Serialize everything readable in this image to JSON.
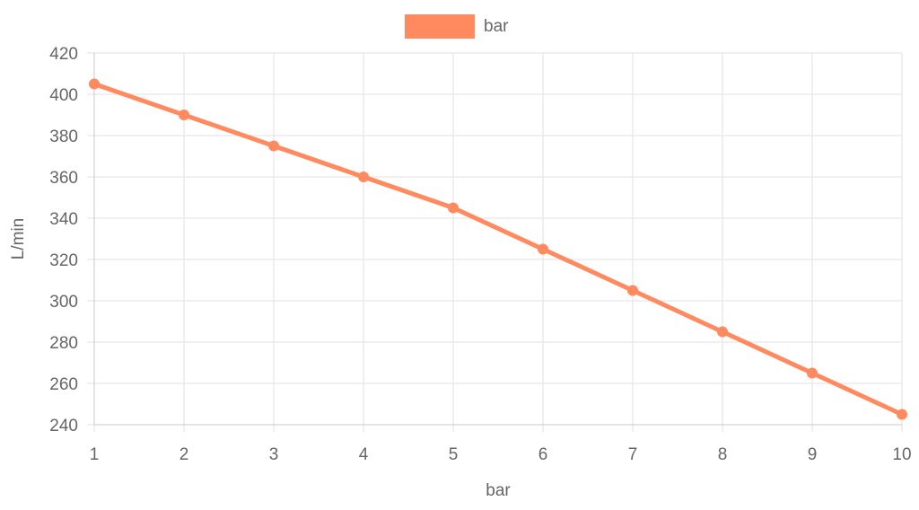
{
  "chart_data": {
    "type": "line",
    "x": [
      1,
      2,
      3,
      4,
      5,
      6,
      7,
      8,
      9,
      10
    ],
    "series": [
      {
        "name": "bar",
        "values": [
          405,
          390,
          375,
          360,
          345,
          325,
          305,
          285,
          265,
          245
        ],
        "color": "#ff8a5f"
      }
    ],
    "xlabel": "bar",
    "ylabel": "L/min",
    "ylim": [
      240,
      420
    ],
    "yticks": [
      240,
      260,
      280,
      300,
      320,
      340,
      360,
      380,
      400,
      420
    ],
    "xticks": [
      1,
      2,
      3,
      4,
      5,
      6,
      7,
      8,
      9,
      10
    ],
    "grid": true,
    "legend_position": "top"
  }
}
